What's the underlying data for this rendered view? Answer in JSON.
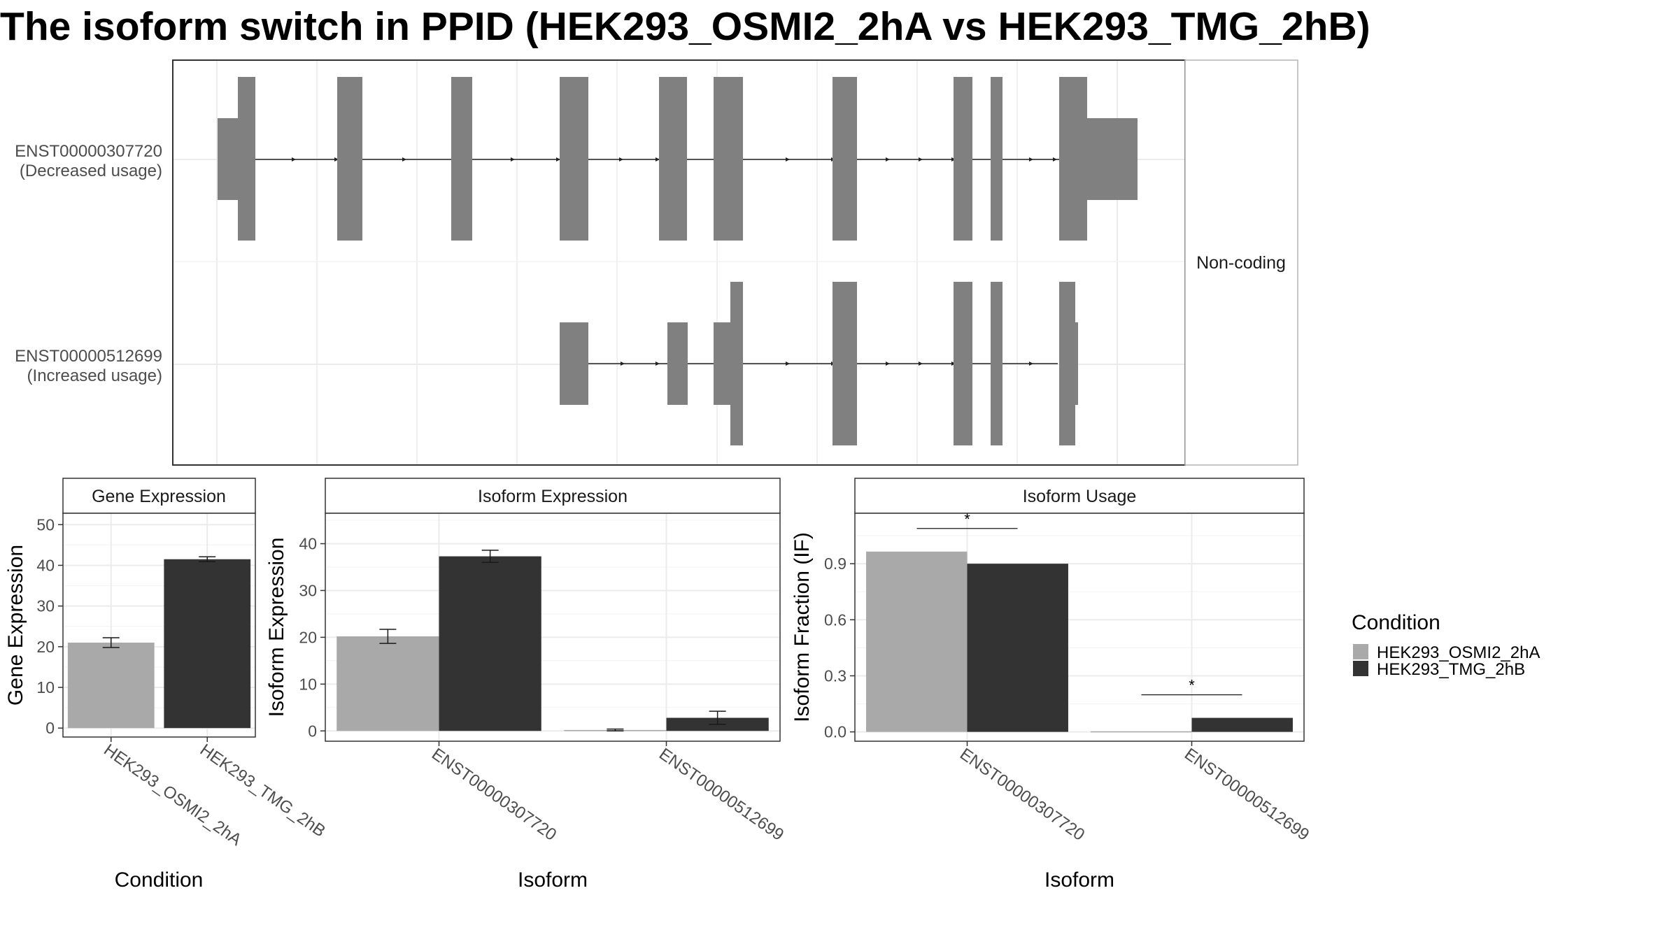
{
  "title": "The isoform switch in PPID (HEK293_OSMI2_2hA vs HEK293_TMG_2hB)",
  "colors": {
    "cond_a": "#a9a9a9",
    "cond_b": "#333333",
    "exon": "#808080",
    "grid": "#ebebeb",
    "frame": "#333333"
  },
  "chart_data": [
    {
      "type": "gene-structure",
      "strip_label": "Non-coding",
      "isoforms": [
        {
          "id": "ENST00000307720",
          "usage": "(Decreased usage)"
        },
        {
          "id": "ENST00000512699",
          "usage": "(Increased usage)"
        }
      ]
    },
    {
      "type": "bar",
      "title": "Gene Expression",
      "xlabel": "Condition",
      "ylabel": "Gene Expression",
      "categories": [
        "HEK293_OSMI2_2hA",
        "HEK293_TMG_2hB"
      ],
      "values": [
        21.0,
        41.5
      ],
      "errors": [
        1.2,
        0.6
      ],
      "yticks": [
        0,
        10,
        20,
        30,
        40,
        50
      ],
      "ylim": [
        -2.2,
        52.8
      ],
      "grid": true
    },
    {
      "type": "bar",
      "title": "Isoform Expression",
      "xlabel": "Isoform",
      "ylabel": "Isoform Expression",
      "categories": [
        "ENST00000307720",
        "ENST00000512699"
      ],
      "series": [
        {
          "name": "HEK293_OSMI2_2hA",
          "values": [
            20.2,
            0.2
          ],
          "errors": [
            1.5,
            0.2
          ]
        },
        {
          "name": "HEK293_TMG_2hB",
          "values": [
            37.3,
            2.8
          ],
          "errors": [
            1.3,
            1.4
          ]
        }
      ],
      "yticks": [
        0,
        10,
        20,
        30,
        40
      ],
      "ylim": [
        -2.2,
        46.5
      ],
      "grid": true
    },
    {
      "type": "bar",
      "title": "Isoform Usage",
      "xlabel": "Isoform",
      "ylabel": "Isoform Fraction (IF)",
      "categories": [
        "ENST00000307720",
        "ENST00000512699"
      ],
      "series": [
        {
          "name": "HEK293_OSMI2_2hA",
          "values": [
            0.965,
            0.003
          ]
        },
        {
          "name": "HEK293_TMG_2hB",
          "values": [
            0.9,
            0.075
          ]
        }
      ],
      "significance": [
        "*",
        "*"
      ],
      "yticks": [
        0.0,
        0.3,
        0.6,
        0.9
      ],
      "ytick_labels": [
        "0.0",
        "0.3",
        "0.6",
        "0.9"
      ],
      "ylim": [
        -0.05,
        1.17
      ],
      "grid": true
    }
  ],
  "legend": {
    "title": "Condition",
    "entries": [
      "HEK293_OSMI2_2hA",
      "HEK293_TMG_2hB"
    ]
  }
}
